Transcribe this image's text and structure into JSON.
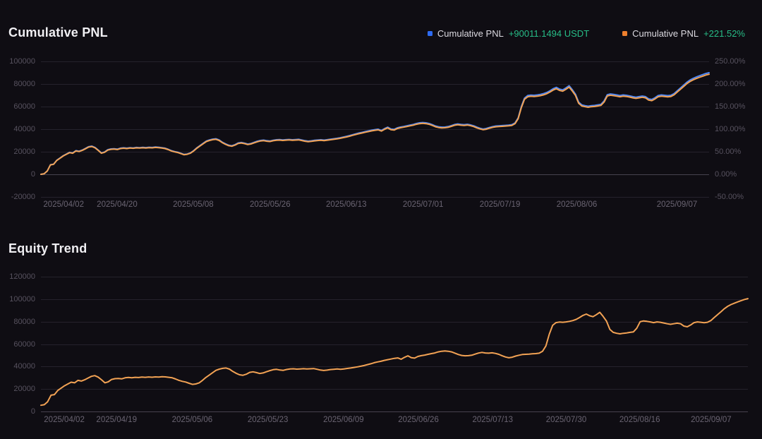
{
  "colors": {
    "background": "#0f0d13",
    "grid_line": "#25222c",
    "zero_line": "#46424e",
    "y_label": "#57525f",
    "x_label": "#6a6472",
    "title": "#f0eff3",
    "legend_label": "#dcdae1",
    "positive_green": "#27bd87",
    "pnl_usdt_blue": "#4d87f5",
    "pnl_pct_orange": "#f2a254",
    "legend_blue_swatch": "#2e6bf2",
    "legend_orange_swatch": "#ee7f2d"
  },
  "chart_data": [
    {
      "id": "cumulative-pnl",
      "title": "Cumulative PNL",
      "type": "line",
      "legend": [
        {
          "label": "Cumulative PNL",
          "value": "+90011.1494 USDT",
          "swatch": "#2e6bf2",
          "value_color": "#27bd87"
        },
        {
          "label": "Cumulative PNL",
          "value": "+221.52%",
          "swatch": "#ee7f2d",
          "value_color": "#27bd87"
        }
      ],
      "x_axis": {
        "labels": [
          "2025/04/02",
          "2025/04/20",
          "2025/05/08",
          "2025/05/26",
          "2025/06/13",
          "2025/07/01",
          "2025/07/19",
          "2025/08/06",
          "2025/09/07"
        ],
        "positions": [
          0.034,
          0.114,
          0.228,
          0.343,
          0.457,
          0.572,
          0.687,
          0.802,
          0.952
        ]
      },
      "left_axis": {
        "min": -20000,
        "max": 100000,
        "ticks": [
          "100000",
          "80000",
          "60000",
          "40000",
          "20000",
          "0",
          "-20000"
        ]
      },
      "right_axis": {
        "min": -50,
        "max": 250,
        "ticks": [
          "250.00%",
          "200.00%",
          "150.00%",
          "100.00%",
          "50.00%",
          "0.00%",
          "-50.00%"
        ]
      },
      "series": [
        {
          "name": "cumulative-pnl-usdt",
          "color": "#4d87f5",
          "axis": "left",
          "values": [
            0,
            500,
            3000,
            8500,
            9000,
            12500,
            14500,
            16500,
            18000,
            19500,
            19000,
            21000,
            20500,
            21500,
            23000,
            24500,
            25000,
            23800,
            21500,
            19000,
            19800,
            21800,
            22500,
            22700,
            22300,
            23200,
            23500,
            23200,
            23600,
            23400,
            23800,
            23600,
            23900,
            23700,
            24000,
            23800,
            24200,
            24000,
            23600,
            23200,
            22200,
            21000,
            20200,
            19600,
            18600,
            17600,
            18000,
            19000,
            21000,
            23500,
            25500,
            27500,
            29500,
            30500,
            31200,
            31500,
            30500,
            28500,
            27000,
            25800,
            25300,
            26300,
            27800,
            28200,
            27600,
            26800,
            27300,
            28300,
            29300,
            30000,
            30300,
            29800,
            29500,
            30200,
            30600,
            30800,
            30500,
            30700,
            30900,
            30600,
            30800,
            31000,
            30400,
            29800,
            29400,
            29700,
            30100,
            30400,
            30600,
            30300,
            30700,
            31100,
            31500,
            31900,
            32400,
            33000,
            33600,
            34300,
            35100,
            35900,
            36600,
            37200,
            37900,
            38500,
            39100,
            39600,
            40000,
            38900,
            40500,
            41800,
            40200,
            39800,
            41200,
            41900,
            42400,
            43000,
            43600,
            44200,
            45000,
            45600,
            45900,
            45600,
            45000,
            44000,
            42800,
            42100,
            41800,
            41900,
            42300,
            43200,
            44100,
            44600,
            44200,
            44000,
            44300,
            43800,
            43000,
            41800,
            40800,
            40100,
            40600,
            41500,
            42300,
            42800,
            43000,
            43200,
            43400,
            43600,
            44000,
            45500,
            50000,
            60000,
            67500,
            69800,
            70200,
            70000,
            70300,
            70800,
            71500,
            72500,
            74000,
            75800,
            77000,
            75500,
            74800,
            76500,
            78500,
            75000,
            71000,
            64000,
            61500,
            60800,
            60300,
            60800,
            61000,
            61500,
            62000,
            65000,
            70500,
            71200,
            70800,
            70300,
            69800,
            70300,
            70000,
            69500,
            68800,
            68300,
            68800,
            69300,
            68800,
            66800,
            66300,
            67800,
            69800,
            70300,
            70000,
            69700,
            70000,
            71500,
            74000,
            76500,
            79000,
            81500,
            83500,
            85000,
            86200,
            87300,
            88300,
            89300,
            90011
          ]
        },
        {
          "name": "cumulative-pnl-percent",
          "color": "#f2a254",
          "axis": "right",
          "derived": {
            "from": 0,
            "divide_by": 406.33
          }
        }
      ]
    },
    {
      "id": "equity-trend",
      "title": "Equity Trend",
      "type": "line",
      "x_axis": {
        "labels": [
          "2025/04/02",
          "2025/04/19",
          "2025/05/06",
          "2025/05/23",
          "2025/06/09",
          "2025/06/26",
          "2025/07/13",
          "2025/07/30",
          "2025/08/16",
          "2025/09/07"
        ],
        "positions": [
          0.033,
          0.107,
          0.214,
          0.321,
          0.428,
          0.534,
          0.639,
          0.743,
          0.847,
          0.948
        ]
      },
      "left_axis": {
        "min": 0,
        "max": 120000,
        "ticks": [
          "120000",
          "100000",
          "80000",
          "60000",
          "40000",
          "20000",
          "0"
        ]
      },
      "series": [
        {
          "name": "equity",
          "color": "#f2a254",
          "axis": "left",
          "values": [
            5500,
            6000,
            8700,
            14500,
            15000,
            18700,
            20800,
            22900,
            24500,
            26100,
            25500,
            27700,
            27100,
            28200,
            29800,
            31300,
            31900,
            30600,
            28200,
            25500,
            26400,
            28500,
            29200,
            29400,
            29000,
            30000,
            30300,
            30000,
            30400,
            30200,
            30600,
            30400,
            30700,
            30500,
            30800,
            30600,
            31000,
            30800,
            30400,
            30000,
            28900,
            27700,
            26800,
            26200,
            25100,
            24100,
            24500,
            25500,
            27700,
            30300,
            32400,
            34500,
            36600,
            37700,
            38400,
            38700,
            37700,
            35600,
            34000,
            32700,
            32200,
            33200,
            34800,
            35300,
            34600,
            33800,
            34300,
            35400,
            36400,
            37200,
            37500,
            36900,
            36600,
            37400,
            37800,
            38000,
            37700,
            37900,
            38100,
            37800,
            38000,
            38200,
            37600,
            36900,
            36500,
            36800,
            37300,
            37600,
            37800,
            37500,
            37900,
            38300,
            38700,
            39200,
            39700,
            40300,
            40900,
            41700,
            42500,
            43400,
            44100,
            44700,
            45500,
            46100,
            46700,
            47300,
            47700,
            46500,
            48200,
            49600,
            47900,
            47500,
            49000,
            49700,
            50200,
            50900,
            51500,
            52100,
            53000,
            53600,
            53900,
            53600,
            53000,
            51900,
            50700,
            49900,
            49600,
            49700,
            50100,
            51100,
            52000,
            52600,
            52100,
            51900,
            52200,
            51700,
            50900,
            49600,
            48500,
            47800,
            48300,
            49300,
            50100,
            50700,
            50900,
            51100,
            51300,
            51500,
            51900,
            53500,
            58300,
            68800,
            76700,
            79100,
            79600,
            79400,
            79700,
            80200,
            80900,
            82000,
            83600,
            85500,
            86700,
            85200,
            84400,
            86200,
            88300,
            84600,
            80400,
            73000,
            70400,
            69600,
            69100,
            69600,
            69900,
            70400,
            70900,
            74100,
            79900,
            80600,
            80200,
            79700,
            79100,
            79700,
            79400,
            78800,
            78100,
            77600,
            78100,
            78600,
            78100,
            76000,
            75400,
            77000,
            79100,
            79700,
            79400,
            79000,
            79400,
            80900,
            83600,
            86200,
            88800,
            91500,
            93600,
            95200,
            96400,
            97600,
            98700,
            99700,
            100460
          ]
        }
      ]
    }
  ]
}
